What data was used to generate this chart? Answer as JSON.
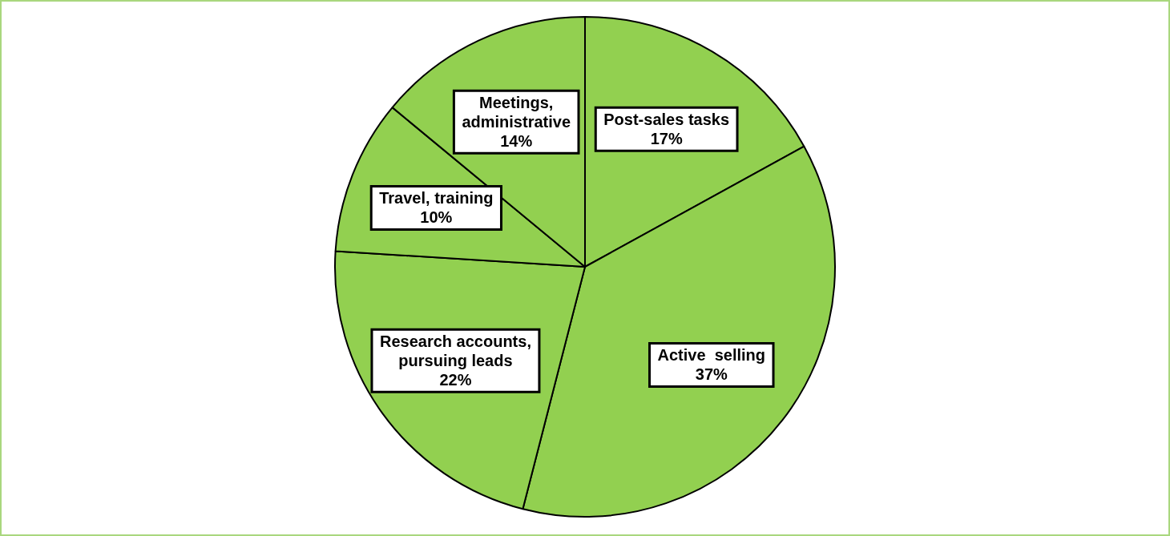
{
  "chart_data": {
    "type": "pie",
    "categories": [
      "Post-sales tasks",
      "Active  selling",
      "Research accounts, pursuing leads",
      "Travel, training",
      "Meetings, administrative"
    ],
    "values": [
      17,
      37,
      22,
      10,
      14
    ],
    "value_labels": [
      "17%",
      "37%",
      "22%",
      "10%",
      "14%"
    ],
    "colors": [
      "#92d050",
      "#92d050",
      "#92d050",
      "#92d050",
      "#92d050"
    ]
  }
}
